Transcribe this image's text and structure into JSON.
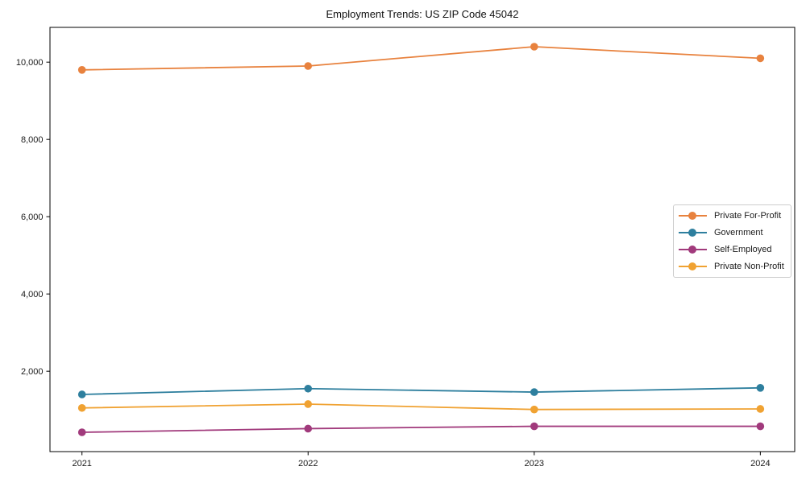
{
  "figure": {
    "background": "#ffffff"
  },
  "chart_data": {
    "type": "line",
    "title": "Employment Trends: US ZIP Code 45042",
    "categories": [
      "2021",
      "2022",
      "2023",
      "2024"
    ],
    "series": [
      {
        "name": "Private For-Profit",
        "color": "#E8823E",
        "values": [
          9800,
          9900,
          10400,
          10100
        ]
      },
      {
        "name": "Government",
        "color": "#2E7F9E",
        "values": [
          1400,
          1550,
          1460,
          1570
        ]
      },
      {
        "name": "Self-Employed",
        "color": "#A13A7C",
        "values": [
          420,
          515,
          575,
          575
        ]
      },
      {
        "name": "Private Non-Profit",
        "color": "#F0A232",
        "values": [
          1050,
          1150,
          1010,
          1025
        ]
      }
    ],
    "xlabel": "",
    "ylabel": "",
    "ylim": [
      -80,
      10900
    ],
    "xlim": [
      2020.85,
      2024.15
    ],
    "y_ticks": [
      2000,
      4000,
      6000,
      8000,
      10000
    ],
    "y_tick_labels": [
      "2,000",
      "4,000",
      "6,000",
      "8,000",
      "10,000"
    ],
    "grid": false,
    "frame": true,
    "legend_position": "center-right",
    "axis_color": "#000000",
    "legend_border_color": "#cccccc",
    "marker": "circle",
    "line_width": 1.8,
    "marker_radius": 4.8
  }
}
